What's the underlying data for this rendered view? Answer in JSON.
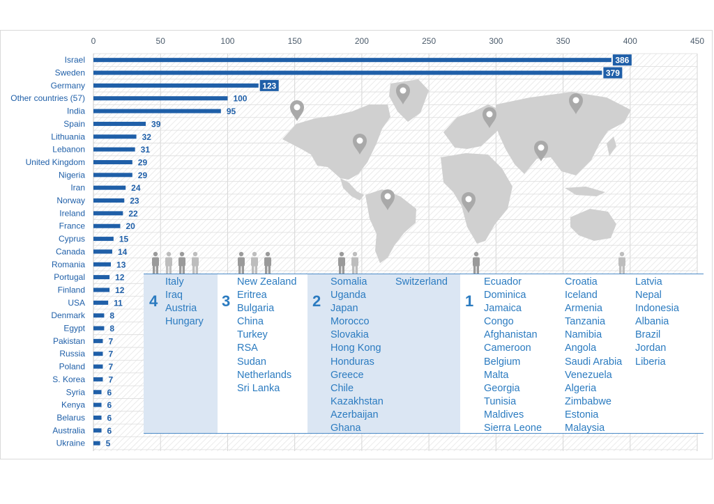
{
  "chart_data": {
    "type": "bar",
    "orientation": "horizontal",
    "xlim": [
      0,
      450
    ],
    "x_ticks": [
      0,
      50,
      100,
      150,
      200,
      250,
      300,
      350,
      400,
      450
    ],
    "grid": true,
    "bar_color": "#1f5fa8",
    "categories": [
      "Israel",
      "Sweden",
      "Germany",
      "Other countries (57)",
      "India",
      "Spain",
      "Lithuania",
      "Lebanon",
      "United Kingdom",
      "Nigeria",
      "Iran",
      "Norway",
      "Ireland",
      "France",
      "Cyprus",
      "Canada",
      "Romania",
      "Portugal",
      "Finland",
      "USA",
      "Denmark",
      "Egypt",
      "Pakistan",
      "Russia",
      "Poland",
      "S. Korea",
      "Syria",
      "Kenya",
      "Belarus",
      "Australia",
      "Ukraine"
    ],
    "values": [
      386,
      379,
      123,
      100,
      95,
      39,
      32,
      31,
      29,
      29,
      24,
      23,
      22,
      20,
      15,
      14,
      13,
      12,
      12,
      11,
      8,
      8,
      7,
      7,
      7,
      7,
      6,
      6,
      6,
      6,
      5
    ],
    "boxed_labels": [
      386,
      379,
      123
    ]
  },
  "groups": [
    {
      "number": "4",
      "columns": [
        [
          "Italy",
          "Iraq",
          "Austria",
          "Hungary"
        ]
      ]
    },
    {
      "number": "3",
      "columns": [
        [
          "New Zealand",
          "Eritrea",
          "Bulgaria",
          "China",
          "Turkey",
          "RSA",
          "Sudan",
          "Netherlands",
          "Sri Lanka"
        ]
      ]
    },
    {
      "number": "2",
      "columns": [
        [
          "Somalia",
          "Uganda",
          "Japan",
          "Morocco",
          "Slovakia",
          "Hong Kong",
          "Honduras",
          "Greece",
          "Chile",
          "Kazakhstan",
          "Azerbaijan",
          "Ghana"
        ],
        [
          "Switzerland"
        ]
      ]
    },
    {
      "number": "1",
      "columns": [
        [
          "Ecuador",
          "Dominica",
          "Jamaica",
          "Congo",
          "Afghanistan",
          "Cameroon",
          "Belgium",
          "Malta",
          "Georgia",
          "Tunisia",
          "Maldives",
          "Sierra Leone"
        ],
        [
          "Croatia",
          "Iceland",
          "Armenia",
          "Tanzania",
          "Namibia",
          "Angola",
          "Saudi Arabia",
          "Venezuela",
          "Algeria",
          "Zimbabwe",
          "Estonia",
          "Malaysia"
        ],
        [
          "Latvia",
          "Nepal",
          "Indonesia",
          "Albania",
          "Brazil",
          "Jordan",
          "Liberia"
        ]
      ]
    }
  ],
  "colors": {
    "accent": "#2b7bc0",
    "map": "#d0d0d0",
    "pin": "#a9a9a9",
    "band": "#dbe6f3"
  },
  "icons": [
    "world-map",
    "location-pin-icon",
    "person-icon"
  ]
}
